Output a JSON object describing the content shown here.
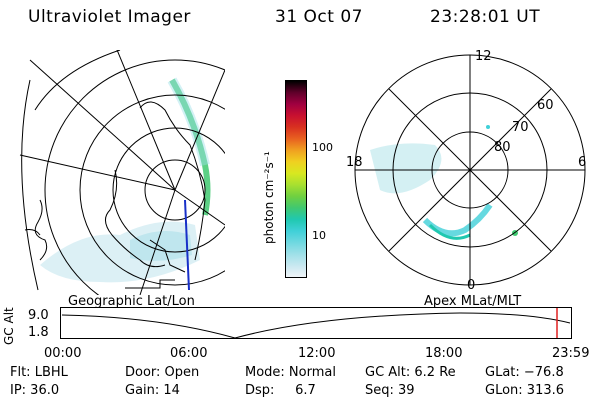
{
  "header": {
    "title": "Ultraviolet Imager",
    "date": "31 Oct 07",
    "time": "23:28:01 UT"
  },
  "left_panel": {
    "caption": "Geographic Lat/Lon"
  },
  "right_panel": {
    "caption": "Apex MLat/MLT",
    "mlt_labels": {
      "top": "12",
      "bottom": "0",
      "left": "18",
      "right": "6"
    },
    "lat_labels": [
      "60",
      "70",
      "80"
    ]
  },
  "colorbar": {
    "unit_label": "photon cm⁻²s⁻¹",
    "tick_labels": [
      "100",
      "10"
    ],
    "colors": [
      "#f0f4f8",
      "#c8e8f0",
      "#9ee0e8",
      "#6fd8e0",
      "#40d0d8",
      "#20c8b0",
      "#40c870",
      "#70d040",
      "#a8e030",
      "#d8e820",
      "#f0d020",
      "#f0a020",
      "#e86020",
      "#d83020",
      "#c81030",
      "#a00040",
      "#60002a",
      "#000000"
    ]
  },
  "timeline": {
    "axis_title": "GC Alt",
    "ytick_labels": [
      "9.0",
      "1.8"
    ],
    "xtick_labels": [
      "00:00",
      "06:00",
      "12:00",
      "18:00",
      "23:59"
    ],
    "current_marker_color": "#e02020"
  },
  "info": {
    "flt": "Flt: LBHL",
    "ip": "IP: 36.0",
    "door": "Door: Open",
    "gain": "Gain: 14",
    "mode": "Mode: Normal",
    "dsp": "Dsp:     6.7",
    "gc_alt": "GC Alt: 6.2 Re",
    "seq": "Seq: 39",
    "glat": "GLat: −76.8",
    "glon": "GLon: 313.6"
  }
}
